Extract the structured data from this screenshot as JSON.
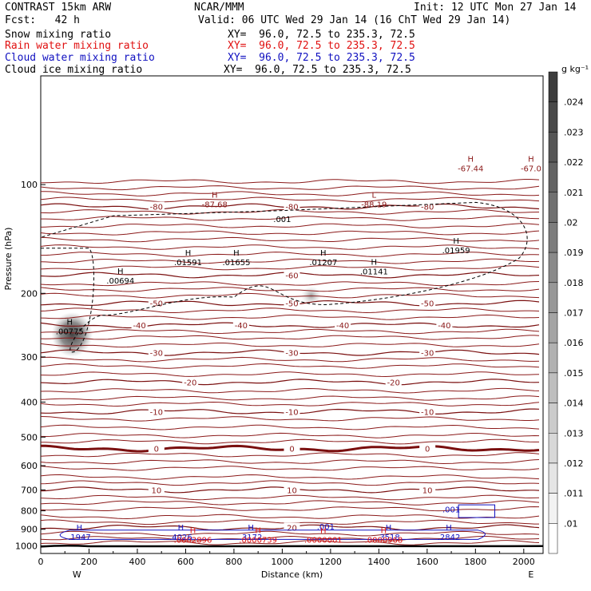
{
  "header": {
    "model": "CONTRAST 15km ARW",
    "org": "NCAR/MMM",
    "init": "Init: 12 UTC Mon 27 Jan 14",
    "fcst": "Fcst:   42 h",
    "valid": "Valid: 06 UTC Wed 29 Jan 14 (16 ChT Wed 29 Jan 14)"
  },
  "fields": [
    {
      "name": "Snow mixing ratio",
      "xy": "XY=  96.0, 72.5 to 235.3, 72.5",
      "color": "#000000"
    },
    {
      "name": "Rain water mixing ratio",
      "xy": "XY=  96.0, 72.5 to 235.3, 72.5",
      "color": "#e01010"
    },
    {
      "name": "Cloud water mixing ratio",
      "xy": "XY=  96.0, 72.5 to 235.3, 72.5",
      "color": "#1010c0"
    },
    {
      "name": "Cloud ice mixing ratio",
      "xy": "XY=  96.0, 72.5 to 235.3, 72.5",
      "color": "#000000"
    }
  ],
  "chart_data": {
    "type": "cross-section contour",
    "title": "CONTRAST 15km ARW",
    "xlabel": "Distance (km)",
    "ylabel": "Pressure (hPa)",
    "xlim": [
      0,
      2080
    ],
    "ylim": [
      1050,
      50
    ],
    "x_ticks": [
      0,
      200,
      400,
      600,
      800,
      1000,
      1200,
      1400,
      1600,
      1800,
      2000
    ],
    "y_ticks": [
      100,
      200,
      300,
      400,
      500,
      600,
      700,
      800,
      900,
      1000
    ],
    "endpoints": {
      "left": "W",
      "right": "E"
    },
    "colorbar": {
      "unit": "g kg⁻¹",
      "ticks": [
        ".024",
        ".023",
        ".022",
        ".021",
        ".02",
        ".019",
        ".018",
        ".017",
        ".016",
        ".015",
        ".014",
        ".013",
        ".012",
        ".011",
        ".01"
      ]
    },
    "temperature_contours": [
      {
        "value": 20,
        "p": 890,
        "labels": [
          "20"
        ]
      },
      {
        "value": 10,
        "p": 700,
        "labels": [
          "10",
          "10",
          "10"
        ]
      },
      {
        "value": 0,
        "p": 538,
        "labels": [
          "0",
          "0",
          "0"
        ]
      },
      {
        "value": -10,
        "p": 425,
        "labels": [
          "-10",
          "-10",
          "-10"
        ]
      },
      {
        "value": -20,
        "p": 352,
        "labels": [
          "-20",
          "-20"
        ]
      },
      {
        "value": -30,
        "p": 292,
        "labels": [
          "-30",
          "-30",
          "-30"
        ]
      },
      {
        "value": -40,
        "p": 245,
        "labels": [
          "-40",
          "-40",
          "-40",
          "-40"
        ]
      },
      {
        "value": -50,
        "p": 213,
        "labels": [
          "-50",
          "-50",
          "-50"
        ]
      },
      {
        "value": -60,
        "p": 178,
        "labels": [
          "-60"
        ]
      },
      {
        "value": -80,
        "p": 115,
        "labels": [
          "-80",
          "-80",
          "-80"
        ]
      }
    ],
    "extrema": [
      {
        "type": "H",
        "value": ".00775",
        "x": 120,
        "p": 252,
        "color": "#000000"
      },
      {
        "type": "H",
        "value": ".00694",
        "x": 330,
        "p": 182,
        "color": "#000000"
      },
      {
        "type": "H",
        "value": ".01591",
        "x": 610,
        "p": 162,
        "color": "#000000"
      },
      {
        "type": "H",
        "value": ".01655",
        "x": 810,
        "p": 162,
        "color": "#000000"
      },
      {
        "type": "H",
        "value": ".01207",
        "x": 1170,
        "p": 162,
        "color": "#000000"
      },
      {
        "type": "H",
        "value": ".01141",
        "x": 1380,
        "p": 172,
        "color": "#000000"
      },
      {
        "type": "H",
        "value": ".01959",
        "x": 1720,
        "p": 150,
        "color": "#000000"
      },
      {
        "type": "H",
        "value": "-87.68",
        "x": 720,
        "p": 112,
        "color": "#8b1a1a"
      },
      {
        "type": "L",
        "value": "-88.19",
        "x": 1380,
        "p": 112,
        "color": "#8b1a1a"
      },
      {
        "type": "H",
        "value": "-67.44",
        "x": 1780,
        "p": 89,
        "color": "#8b1a1a"
      },
      {
        "type": "H",
        "value": "-67.0",
        "x": 2030,
        "p": 89,
        "color": "#8b1a1a"
      },
      {
        "type": "H",
        "value": ".1947",
        "x": 160,
        "p": 935,
        "color": "#1010c0"
      },
      {
        "type": "H",
        "value": ".4026",
        "x": 580,
        "p": 935,
        "color": "#1010c0"
      },
      {
        "type": "H",
        "value": ".3172",
        "x": 870,
        "p": 935,
        "color": "#1010c0"
      },
      {
        "type": "H",
        "value": ".3518",
        "x": 1440,
        "p": 935,
        "color": "#1010c0"
      },
      {
        "type": "H",
        "value": ".2842",
        "x": 1690,
        "p": 935,
        "color": "#1010c0"
      },
      {
        "type": "H",
        "value": ".0002896",
        "x": 630,
        "p": 950,
        "color": "#e01010"
      },
      {
        "type": "H",
        "value": ".0000739",
        "x": 900,
        "p": 950,
        "color": "#e01010"
      },
      {
        "type": "H",
        "value": ".0000001",
        "x": 1170,
        "p": 950,
        "color": "#e01010"
      },
      {
        "type": "H",
        "value": ".0000968",
        "x": 1420,
        "p": 950,
        "color": "#e01010"
      }
    ],
    "cloud_water_label": ".001",
    "cloud_ice_label": ".001",
    "snow_maxima": [
      {
        "x": 130,
        "p": 260
      },
      {
        "x": 1120,
        "p": 203
      }
    ]
  }
}
